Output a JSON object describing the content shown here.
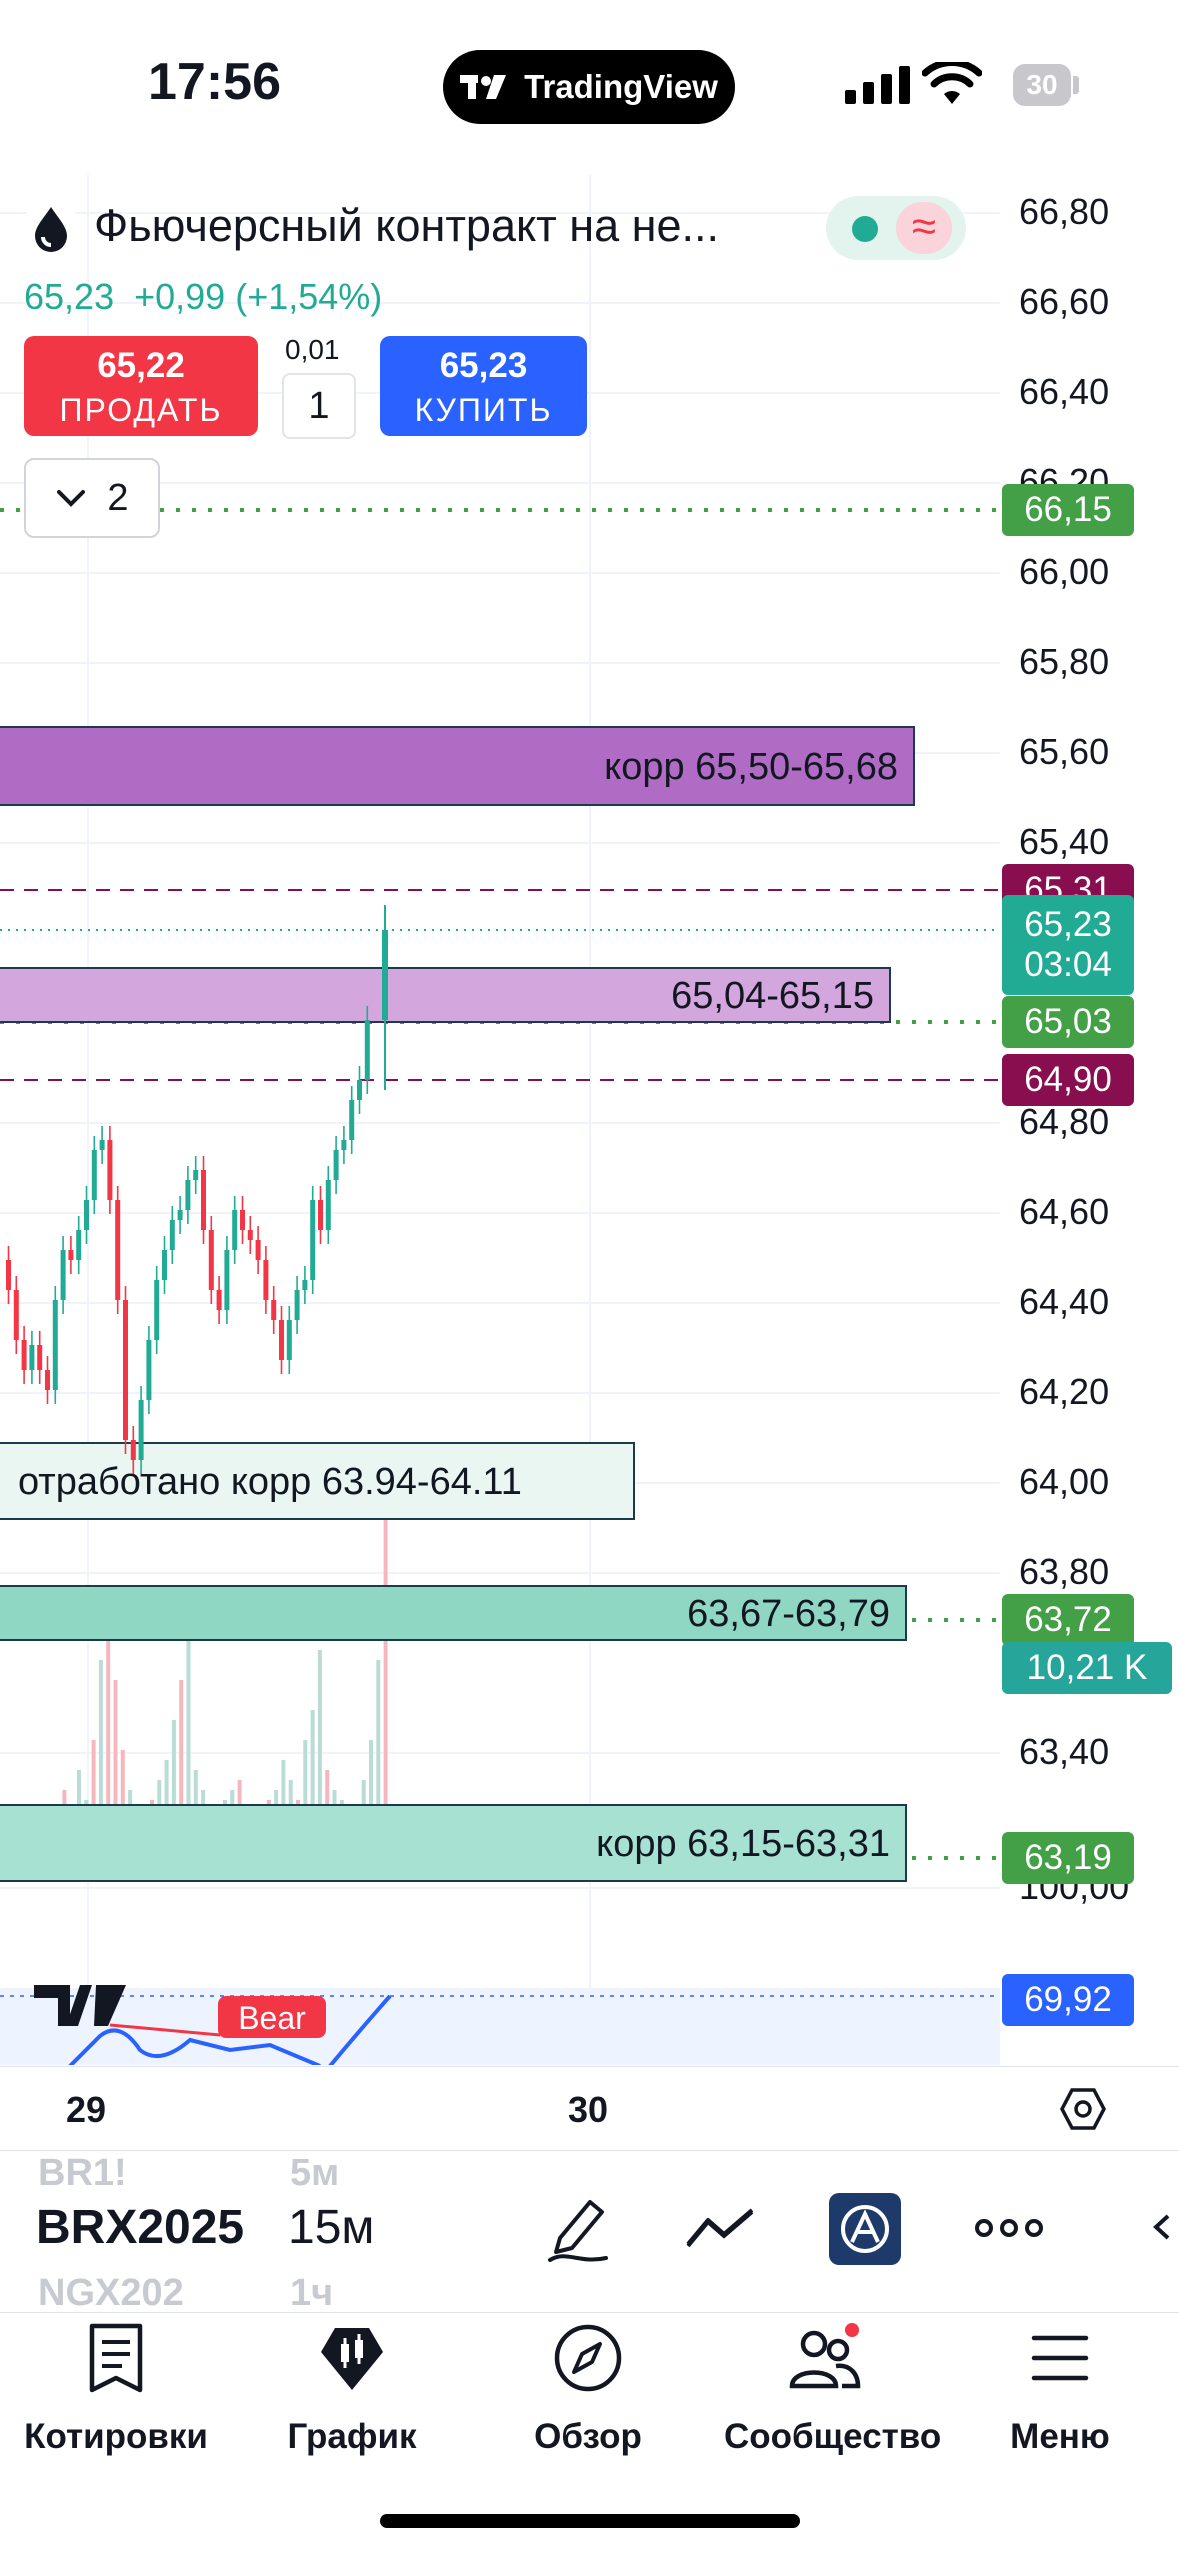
{
  "status_bar": {
    "time": "17:56",
    "app_badge": "TradingView",
    "battery": "30"
  },
  "header": {
    "title": "Фьючерсный контракт на не...",
    "last_price": "65,23",
    "change": "+0,99",
    "change_pct": "(+1,54%)",
    "sell": {
      "price": "65,22",
      "label": "ПРОДАТЬ"
    },
    "buy": {
      "price": "65,23",
      "label": "КУПИТЬ"
    },
    "qty_step": "0,01",
    "qty": "1",
    "collapsed_count": "2",
    "status_pill_icon": "≈"
  },
  "price_axis": {
    "ticks": [
      "66,80",
      "66,60",
      "66,40",
      "66,20",
      "66,00",
      "65,80",
      "65,60",
      "65,40",
      "64,80",
      "64,60",
      "64,40",
      "64,20",
      "64,00",
      "63,80",
      "63,40",
      "100,00"
    ]
  },
  "price_tags": [
    {
      "text": "66,15",
      "color": "#43a047"
    },
    {
      "text": "65,31",
      "color": "#880e4f"
    },
    {
      "text": "65,23",
      "sub": "03:04",
      "color": "#22ab94"
    },
    {
      "text": "65,03",
      "color": "#43a047"
    },
    {
      "text": "64,90",
      "color": "#880e4f"
    },
    {
      "text": "63,72",
      "color": "#43a047"
    },
    {
      "text": "10,21 K",
      "color": "#26a69a"
    },
    {
      "text": "63,19",
      "color": "#43a047"
    },
    {
      "text": "69,92",
      "color": "#2962ff"
    }
  ],
  "zones": [
    {
      "label": "корр 65,50-65,68"
    },
    {
      "label": "65,04-65,15"
    },
    {
      "label": "отработано корр 63.94-64.11"
    },
    {
      "label": "63,67-63,79"
    },
    {
      "label": "корр 63,15-63,31"
    }
  ],
  "indicator": {
    "label": "Bear"
  },
  "time_axis": {
    "labels": [
      "29",
      "30"
    ]
  },
  "toolbar": {
    "symbol_prev": "BR1!",
    "symbol": "BRX2025",
    "symbol_next": "NGX202",
    "timeframe_prev": "5м",
    "timeframe": "15м",
    "timeframe_next": "1ч",
    "icons": [
      "pen-icon",
      "trend-tools-icon",
      "indicator-app-icon",
      "more-icon",
      "chevron-left-icon"
    ]
  },
  "bottom_nav": [
    {
      "label": "Котировки",
      "icon": "watchlist-icon"
    },
    {
      "label": "График",
      "icon": "chart-icon"
    },
    {
      "label": "Обзор",
      "icon": "compass-icon"
    },
    {
      "label": "Сообщество",
      "icon": "community-icon"
    },
    {
      "label": "Меню",
      "icon": "menu-icon"
    }
  ],
  "colors": {
    "up": "#22ab94",
    "down": "#f23645",
    "sell": "#f23645",
    "buy": "#2962ff",
    "zone_purple": "#b06cc5",
    "zone_teal": "#9ddbc8"
  }
}
